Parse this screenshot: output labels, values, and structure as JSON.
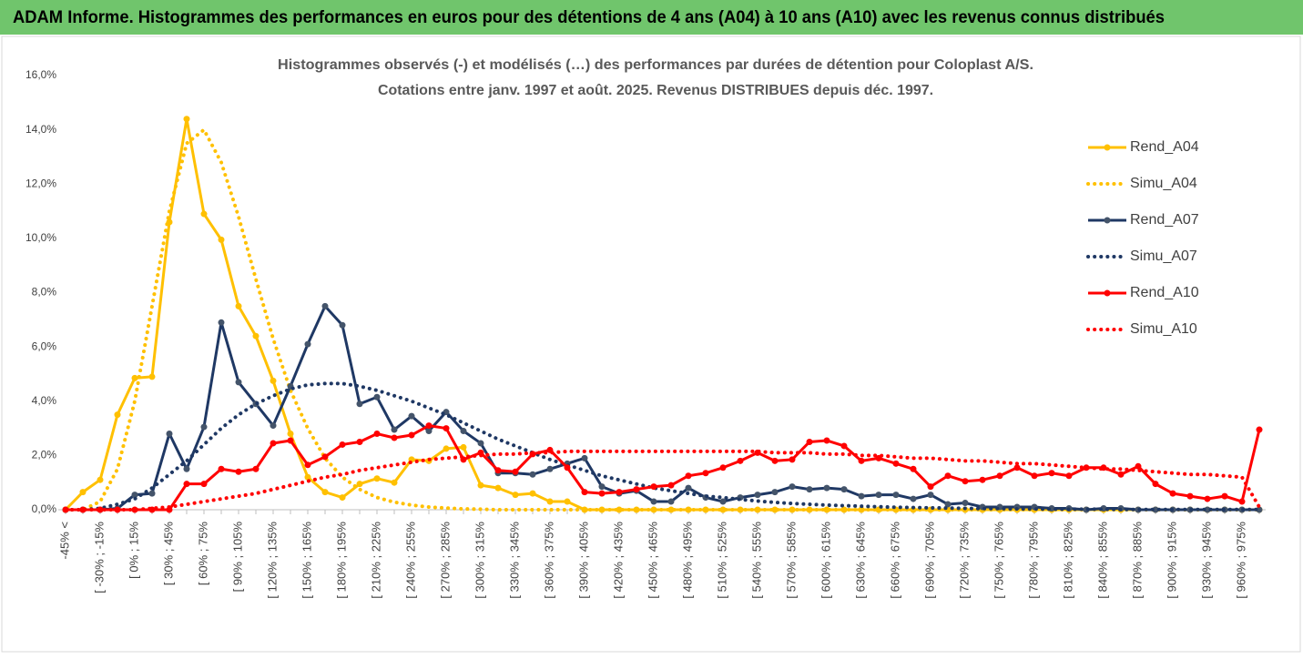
{
  "header": {
    "title": "ADAM Informe. Histogrammes des performances en euros pour des détentions de 4 ans (A04) à 10 ans (A10) avec les revenus connus distribués"
  },
  "chart_data": {
    "type": "line",
    "title": "Histogrammes observés (-) et modélisés (…) des performances par durées de détention pour Coloplast A/S.",
    "subtitle": "Cotations entre janv. 1997 et août. 2025. Revenus DISTRIBUES depuis déc. 1997.",
    "categories": [
      "-45% <",
      null,
      "[ -30% ; -15%",
      null,
      "[ 0% ; 15%",
      null,
      "[ 30% ; 45%",
      null,
      "[ 60% ; 75%",
      null,
      "[ 90% ; 105%",
      null,
      "[ 120% ; 135%",
      null,
      "[ 150% ; 165%",
      null,
      "[ 180% ; 195%",
      null,
      "[ 210% ; 225%",
      null,
      "[ 240% ; 255%",
      null,
      "[ 270% ; 285%",
      null,
      "[ 300% ; 315%",
      null,
      "[ 330% ; 345%",
      null,
      "[ 360% ; 375%",
      null,
      "[ 390% ; 405%",
      null,
      "[ 420% ; 435%",
      null,
      "[ 450% ; 465%",
      null,
      "[ 480% ; 495%",
      null,
      "[ 510% ; 525%",
      null,
      "[ 540% ; 555%",
      null,
      "[ 570% ; 585%",
      null,
      "[ 600% ; 615%",
      null,
      "[ 630% ; 645%",
      null,
      "[ 660% ; 675%",
      null,
      "[ 690% ; 705%",
      null,
      "[ 720% ; 735%",
      null,
      "[ 750% ; 765%",
      null,
      "[ 780% ; 795%",
      null,
      "[ 810% ; 825%",
      null,
      "[ 840% ; 855%",
      null,
      "[ 870% ; 885%",
      null,
      "[ 900% ; 915%",
      null,
      "[ 930% ; 945%",
      null,
      "[ 960% ; 975%",
      null
    ],
    "series": [
      {
        "name": "Rend_A04",
        "color": "#ffc000",
        "dashed": false,
        "markers": true,
        "values": [
          0,
          0.65,
          1.1,
          3.5,
          4.85,
          4.9,
          10.6,
          14.4,
          10.9,
          9.95,
          7.5,
          6.4,
          4.75,
          2.8,
          1.2,
          0.65,
          0.45,
          0.95,
          1.15,
          1.0,
          1.85,
          1.8,
          2.25,
          2.3,
          0.9,
          0.8,
          0.55,
          0.6,
          0.3,
          0.3,
          0,
          0,
          0,
          0,
          0,
          0,
          0,
          0,
          0,
          0,
          0,
          0,
          0,
          0,
          0,
          0,
          0,
          0,
          0,
          0,
          0,
          0,
          0,
          0,
          0,
          0,
          0,
          0,
          0,
          0,
          0,
          0,
          0,
          0,
          0,
          0,
          0,
          0,
          0,
          0
        ]
      },
      {
        "name": "Simu_A04",
        "color": "#ffc000",
        "dashed": true,
        "markers": false,
        "values": [
          0,
          0,
          0.3,
          1.5,
          4,
          7.5,
          11,
          13.5,
          14,
          12.8,
          10.8,
          8.5,
          6.3,
          4.4,
          3.0,
          1.9,
          1.2,
          0.75,
          0.45,
          0.28,
          0.17,
          0.1,
          0.06,
          0.03,
          0.02,
          0,
          0,
          0,
          0,
          0,
          0,
          0,
          0,
          0,
          0,
          0,
          0,
          0,
          0,
          0,
          0,
          0,
          0,
          0,
          0,
          0,
          0,
          0,
          0,
          0,
          0,
          0,
          0,
          0,
          0,
          0,
          0,
          0,
          0,
          0,
          0,
          0,
          0,
          0,
          0,
          0,
          0,
          0,
          0,
          0
        ]
      },
      {
        "name": "Rend_A07",
        "color": "#1f3864",
        "dashed": false,
        "markers": true,
        "values": [
          0,
          0,
          0,
          0.05,
          0.55,
          0.6,
          2.8,
          1.5,
          3.05,
          6.9,
          4.7,
          3.9,
          3.1,
          4.55,
          6.1,
          7.5,
          6.8,
          3.9,
          4.15,
          2.95,
          3.45,
          2.9,
          3.6,
          2.9,
          2.45,
          1.35,
          1.35,
          1.3,
          1.5,
          1.7,
          1.9,
          0.85,
          0.6,
          0.7,
          0.3,
          0.3,
          0.8,
          0.45,
          0.3,
          0.45,
          0.55,
          0.65,
          0.85,
          0.75,
          0.8,
          0.75,
          0.5,
          0.55,
          0.55,
          0.4,
          0.55,
          0.2,
          0.25,
          0.1,
          0.1,
          0.1,
          0.1,
          0.05,
          0.05,
          0,
          0.05,
          0.05,
          0,
          0,
          0,
          0,
          0,
          0,
          0,
          0
        ]
      },
      {
        "name": "Simu_A07",
        "color": "#1f3864",
        "dashed": true,
        "markers": false,
        "values": [
          0,
          0,
          0.05,
          0.2,
          0.4,
          0.8,
          1.3,
          1.8,
          2.4,
          3.0,
          3.5,
          3.9,
          4.2,
          4.45,
          4.6,
          4.65,
          4.65,
          4.55,
          4.4,
          4.2,
          4.0,
          3.75,
          3.5,
          3.2,
          2.9,
          2.6,
          2.35,
          2.1,
          1.85,
          1.65,
          1.45,
          1.25,
          1.1,
          0.95,
          0.8,
          0.7,
          0.6,
          0.5,
          0.45,
          0.38,
          0.32,
          0.27,
          0.23,
          0.2,
          0.17,
          0.15,
          0.13,
          0.11,
          0.09,
          0.08,
          0.07,
          0.06,
          0.05,
          0.04,
          0.04,
          0.03,
          0.03,
          0.02,
          0.02,
          0.02,
          0.02,
          0.01,
          0.01,
          0.01,
          0.01,
          0.01,
          0.01,
          0.01,
          0.01,
          0.01
        ]
      },
      {
        "name": "Rend_A10",
        "color": "#ff0000",
        "dashed": false,
        "markers": true,
        "values": [
          0,
          0,
          0,
          0,
          0,
          0,
          0,
          0.95,
          0.95,
          1.5,
          1.4,
          1.5,
          2.45,
          2.55,
          1.65,
          1.95,
          2.4,
          2.5,
          2.8,
          2.65,
          2.75,
          3.1,
          3.0,
          1.85,
          2.1,
          1.45,
          1.4,
          2.05,
          2.2,
          1.55,
          0.65,
          0.6,
          0.65,
          0.75,
          0.85,
          0.9,
          1.25,
          1.35,
          1.55,
          1.8,
          2.1,
          1.8,
          1.85,
          2.5,
          2.55,
          2.35,
          1.8,
          1.9,
          1.7,
          1.5,
          0.85,
          1.25,
          1.05,
          1.1,
          1.25,
          1.55,
          1.25,
          1.35,
          1.25,
          1.55,
          1.55,
          1.3,
          1.6,
          0.95,
          0.6,
          0.5,
          0.4,
          0.5,
          0.3,
          2.95
        ]
      },
      {
        "name": "Simu_A10",
        "color": "#ff0000",
        "dashed": true,
        "markers": false,
        "values": [
          0,
          0,
          0,
          0,
          0,
          0.05,
          0.1,
          0.2,
          0.3,
          0.4,
          0.5,
          0.6,
          0.75,
          0.9,
          1.05,
          1.2,
          1.3,
          1.45,
          1.55,
          1.65,
          1.75,
          1.85,
          1.9,
          1.95,
          2.0,
          2.05,
          2.05,
          2.1,
          2.1,
          2.15,
          2.15,
          2.15,
          2.15,
          2.15,
          2.15,
          2.15,
          2.15,
          2.15,
          2.15,
          2.15,
          2.15,
          2.1,
          2.1,
          2.1,
          2.05,
          2.05,
          2.0,
          2.0,
          1.95,
          1.9,
          1.9,
          1.85,
          1.8,
          1.8,
          1.75,
          1.7,
          1.7,
          1.65,
          1.6,
          1.55,
          1.5,
          1.5,
          1.45,
          1.4,
          1.35,
          1.3,
          1.3,
          1.25,
          1.2,
          0.1
        ]
      }
    ],
    "ylim": [
      0,
      16
    ],
    "yticks": [
      {
        "value": 0,
        "label": "0,0%"
      },
      {
        "value": 2,
        "label": "2,0%"
      },
      {
        "value": 4,
        "label": "4,0%"
      },
      {
        "value": 6,
        "label": "6,0%"
      },
      {
        "value": 8,
        "label": "8,0%"
      },
      {
        "value": 10,
        "label": "10,0%"
      },
      {
        "value": 12,
        "label": "12,0%"
      },
      {
        "value": 14,
        "label": "14,0%"
      },
      {
        "value": 16,
        "label": "16,0%"
      }
    ],
    "grid": false,
    "legend": "upper right"
  }
}
